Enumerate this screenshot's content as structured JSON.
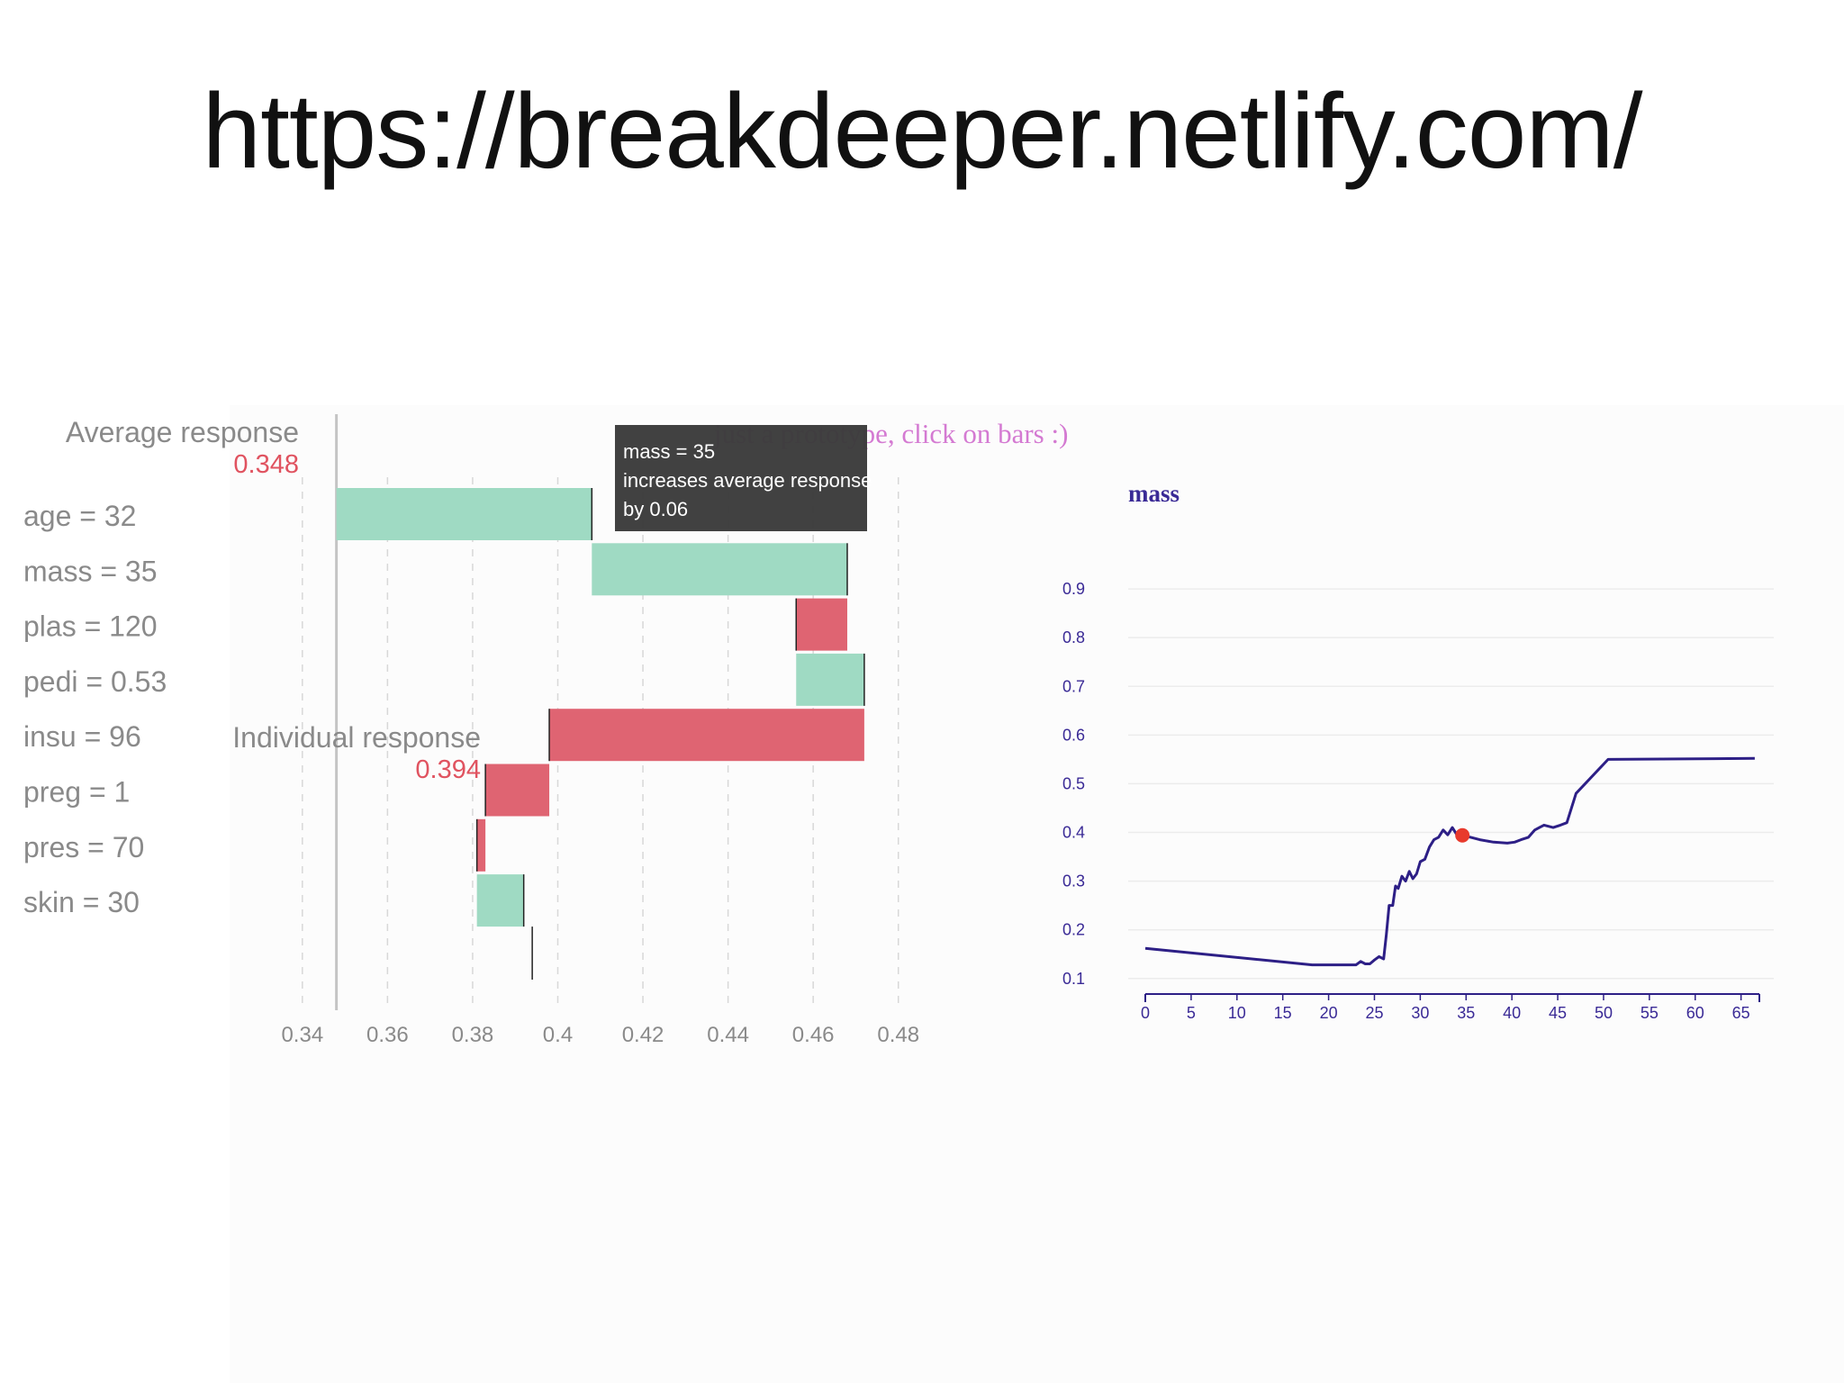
{
  "slide": {
    "url_text": "https://breakdeeper.netlify.com/"
  },
  "hint_text": "just a prototype, click on bars :)",
  "tooltip": {
    "lines": [
      "mass = 35",
      "increases average response",
      "by 0.06"
    ]
  },
  "colors": {
    "positive": "#9fdac3",
    "negative": "#df6472",
    "pdp_line": "#2d1f86",
    "pdp_point": "#e83a2c",
    "value_text": "#e05360"
  },
  "chart_data": [
    {
      "type": "bar",
      "subtype": "waterfall",
      "average_label": "Average response",
      "average_value": 0.348,
      "average_value_text": "0.348",
      "individual_label": "Individual response",
      "individual_value": 0.394,
      "individual_value_text": "0.394",
      "categories": [
        "age = 32",
        "mass = 35",
        "plas = 120",
        "pedi = 0.53",
        "insu = 96",
        "preg = 1",
        "pres = 70",
        "skin = 30"
      ],
      "contributions": [
        0.06,
        0.06,
        -0.012,
        0.016,
        -0.074,
        -0.015,
        -0.002,
        0.011
      ],
      "xlim": [
        0.332,
        0.49
      ],
      "xticks": [
        0.34,
        0.36,
        0.38,
        0.4,
        0.42,
        0.44,
        0.46,
        0.48
      ],
      "xtick_labels": [
        "0.34",
        "0.36",
        "0.38",
        "0.4",
        "0.42",
        "0.44",
        "0.46",
        "0.48"
      ],
      "grid": true
    },
    {
      "type": "line",
      "title": "mass",
      "xlim": [
        0,
        67
      ],
      "ylim": [
        0.07,
        1.0
      ],
      "xticks": [
        0,
        5,
        10,
        15,
        20,
        25,
        30,
        35,
        40,
        45,
        50,
        55,
        60,
        65
      ],
      "xtick_labels": [
        "0",
        "5",
        "10",
        "15",
        "20",
        "25",
        "30",
        "35",
        "40",
        "45",
        "50",
        "55",
        "60",
        "65"
      ],
      "yticks": [
        0.1,
        0.2,
        0.3,
        0.4,
        0.5,
        0.6,
        0.7,
        0.8,
        0.9
      ],
      "ytick_labels": [
        "0.1",
        "0.2",
        "0.3",
        "0.4",
        "0.5",
        "0.6",
        "0.7",
        "0.8",
        "0.9"
      ],
      "grid": true,
      "x": [
        0,
        18.2,
        23,
        23.5,
        24,
        24.5,
        25,
        25.5,
        26,
        26.3,
        26.6,
        27,
        27.3,
        27.6,
        28,
        28.4,
        28.8,
        29.2,
        29.6,
        30,
        30.5,
        31,
        31.5,
        32,
        32.5,
        33,
        33.5,
        34,
        34.6,
        35.5,
        36.5,
        38,
        39.5,
        40.3,
        41,
        41.8,
        42.5,
        43,
        43.5,
        44.5,
        45.3,
        46,
        47,
        50.5,
        66.5
      ],
      "y": [
        0.162,
        0.128,
        0.128,
        0.135,
        0.13,
        0.13,
        0.138,
        0.145,
        0.14,
        0.19,
        0.25,
        0.25,
        0.29,
        0.285,
        0.31,
        0.3,
        0.32,
        0.305,
        0.315,
        0.34,
        0.345,
        0.37,
        0.385,
        0.39,
        0.405,
        0.395,
        0.41,
        0.395,
        0.394,
        0.39,
        0.385,
        0.38,
        0.378,
        0.38,
        0.385,
        0.39,
        0.405,
        0.41,
        0.415,
        0.41,
        0.415,
        0.42,
        0.48,
        0.55,
        0.552
      ],
      "highlight": {
        "x": 34.6,
        "y": 0.394
      }
    }
  ]
}
